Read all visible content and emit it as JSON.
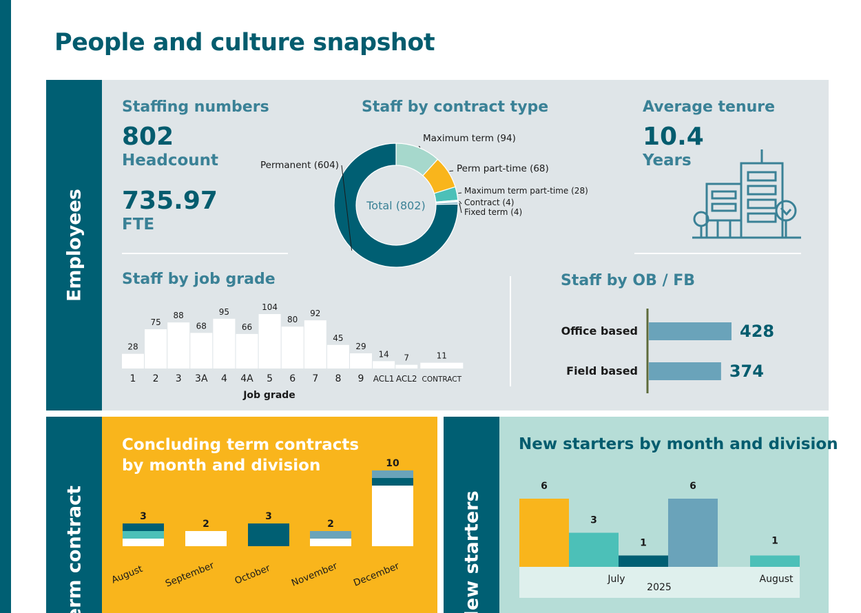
{
  "page": {
    "title": "People and culture snapshot"
  },
  "sections": {
    "employees": "Employees",
    "term_contract": "Term contract",
    "new_starters": "New starters"
  },
  "staffing": {
    "title": "Staffing numbers",
    "headcount_value": "802",
    "headcount_label": "Headcount",
    "fte_value": "735.97",
    "fte_label": "FTE"
  },
  "tenure": {
    "title": "Average tenure",
    "value": "10.4",
    "label": "Years",
    "icon": "building-trees-icon"
  },
  "colors": {
    "dark_teal": "#005f73",
    "mid_teal": "#3a8196",
    "light_mint": "#a6d8cc",
    "gold": "#f9b51c",
    "aqua": "#4cc0b8",
    "steel_blue": "#6aa3ba",
    "panel_grey": "#dfe5e8"
  },
  "chart_data": [
    {
      "type": "pie",
      "title": "Staff by contract type",
      "center_label": "Total (802)",
      "slices": [
        {
          "label": "Maximum term (94)",
          "value": 94,
          "color": "#a6d8cc"
        },
        {
          "label": "Perm part-time (68)",
          "value": 68,
          "color": "#f9b51c"
        },
        {
          "label": "Maximum term part-time (28)",
          "value": 28,
          "color": "#4cc0b8"
        },
        {
          "label": "Contract (4)",
          "value": 4,
          "color": "#ffffff"
        },
        {
          "label": "Fixed term (4)",
          "value": 4,
          "color": "#6aa3ba"
        },
        {
          "label": "Permanent (604)",
          "value": 604,
          "color": "#005f73"
        }
      ]
    },
    {
      "type": "bar",
      "title": "Staff by job grade",
      "xlabel": "Job grade",
      "categories": [
        "1",
        "2",
        "3",
        "3A",
        "4",
        "4A",
        "5",
        "6",
        "7",
        "8",
        "9",
        "ACL1",
        "ACL2",
        "CONTRACT"
      ],
      "values": [
        28,
        75,
        88,
        68,
        95,
        66,
        104,
        80,
        92,
        45,
        29,
        14,
        7,
        11
      ],
      "ylim": [
        0,
        104
      ]
    },
    {
      "type": "bar",
      "orientation": "horizontal",
      "title": "Staff by OB / FB",
      "categories": [
        "Office based",
        "Field based"
      ],
      "values": [
        428,
        374
      ],
      "value_labels": [
        "428",
        "374"
      ]
    },
    {
      "type": "bar",
      "stacked": true,
      "title": "Concluding term contracts by month and division",
      "categories": [
        "August",
        "September",
        "October",
        "November",
        "December"
      ],
      "totals": [
        3,
        2,
        3,
        2,
        10
      ],
      "total_labels": [
        "3",
        "2",
        "3",
        "2",
        "10"
      ],
      "series": [
        {
          "color": "#ffffff",
          "values": [
            1,
            2,
            0,
            1,
            8
          ]
        },
        {
          "color": "#4cc0b8",
          "values": [
            1,
            0,
            0,
            0,
            0
          ]
        },
        {
          "color": "#005f73",
          "values": [
            1,
            0,
            3,
            0,
            1
          ]
        },
        {
          "color": "#6aa3ba",
          "values": [
            0,
            0,
            0,
            1,
            1
          ]
        }
      ],
      "ylim": [
        0,
        10
      ]
    },
    {
      "type": "bar",
      "title": "New starters by month and division",
      "groups": [
        {
          "month": "July",
          "bars": [
            {
              "value": 6,
              "color": "#f9b51c"
            },
            {
              "value": 3,
              "color": "#4cc0b8"
            },
            {
              "value": 1,
              "color": "#005f73"
            },
            {
              "value": 6,
              "color": "#6aa3ba"
            }
          ]
        },
        {
          "month": "August",
          "bars": [
            {
              "value": 1,
              "color": "#4cc0b8"
            }
          ]
        }
      ],
      "year_label": "2025",
      "ylim": [
        0,
        6
      ]
    }
  ]
}
